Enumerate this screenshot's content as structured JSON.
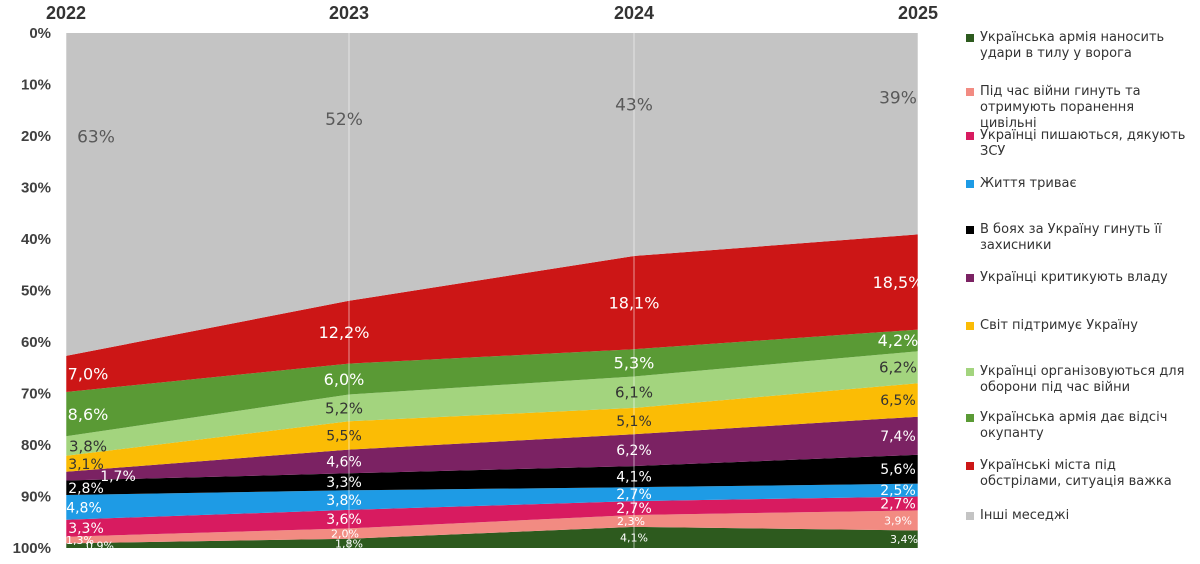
{
  "chart_data": {
    "type": "area",
    "stacked": true,
    "y_axis_inverted": true,
    "ylim": [
      0,
      100
    ],
    "y_ticks": [
      "0%",
      "10%",
      "20%",
      "30%",
      "40%",
      "50%",
      "60%",
      "70%",
      "80%",
      "90%",
      "100%"
    ],
    "categories": [
      "2022",
      "2023",
      "2024",
      "2025"
    ],
    "legend_position": "right",
    "series": [
      {
        "name": "Українська армія наносить удари в тилу у ворога",
        "color": "#2d5a1e",
        "values": [
          0.9,
          1.8,
          4.1,
          3.4
        ],
        "labels": [
          "0,9%",
          "1,8%",
          "4,1%",
          "3,4%"
        ]
      },
      {
        "name": "Під час війни гинуть та отримують поранення цивільні",
        "color": "#f28b82",
        "values": [
          1.3,
          2.0,
          2.3,
          3.9
        ],
        "labels": [
          "1,3%",
          "2,0%",
          "2,3%",
          "3,9%"
        ]
      },
      {
        "name": "Українці пишаються, дякують ЗСУ",
        "color": "#d81b60",
        "values": [
          3.3,
          3.6,
          2.7,
          2.7
        ],
        "labels": [
          "3,3%",
          "3,6%",
          "2,7%",
          "2,7%"
        ]
      },
      {
        "name": "Життя триває",
        "color": "#1e9be5",
        "values": [
          4.8,
          3.8,
          2.7,
          2.5
        ],
        "labels": [
          "4,8%",
          "3,8%",
          "2,7%",
          "2,5%"
        ]
      },
      {
        "name": "В боях за Україну гинуть її захисники",
        "color": "#000000",
        "values": [
          2.8,
          3.3,
          4.1,
          5.6
        ],
        "labels": [
          "2,8%",
          "3,3%",
          "4,1%",
          "5,6%"
        ]
      },
      {
        "name": "Українці критикують владу",
        "color": "#7b2263",
        "values": [
          1.7,
          4.6,
          6.2,
          7.4
        ],
        "labels": [
          "1,7%",
          "4,6%",
          "6,2%",
          "7,4%"
        ]
      },
      {
        "name": "Світ підтримує Україну",
        "color": "#fbbc05",
        "values": [
          3.1,
          5.5,
          5.1,
          6.5
        ],
        "labels": [
          "3,1%",
          "5,5%",
          "5,1%",
          "6,5%"
        ]
      },
      {
        "name": "Українці організовуються для оборони під час війни",
        "color": "#a3d47e",
        "values": [
          3.8,
          5.2,
          6.1,
          6.2
        ],
        "labels": [
          "3,8%",
          "5,2%",
          "6,1%",
          "6,2%"
        ]
      },
      {
        "name": "Українська армія дає відсіч окупанту",
        "color": "#5a9a35",
        "values": [
          8.6,
          6.0,
          5.3,
          4.2
        ],
        "labels": [
          "8,6%",
          "6,0%",
          "5,3%",
          "4,2%"
        ]
      },
      {
        "name": "Українські міста під обстрілами, ситуація важка",
        "color": "#cc1616",
        "values": [
          7.0,
          12.2,
          18.1,
          18.5
        ],
        "labels": [
          "7,0%",
          "12,2%",
          "18,1%",
          "18,5%"
        ]
      },
      {
        "name": "Інші меседжі",
        "color": "#c4c4c4",
        "values": [
          63,
          52,
          43,
          39
        ],
        "labels": [
          "63%",
          "52%",
          "43%",
          "39%"
        ]
      }
    ]
  }
}
